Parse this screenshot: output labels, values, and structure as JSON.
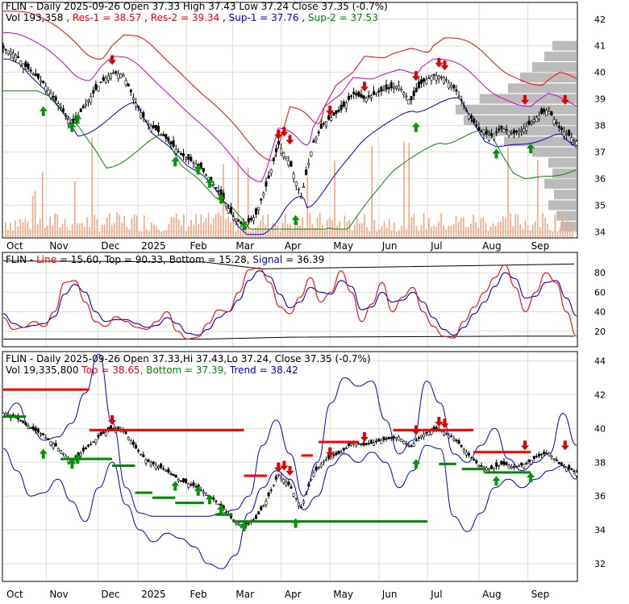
{
  "panel1": {
    "header1": "FLIN - Daily 2025-09-26 Open 37.33  High 37.43  Low 37.24  Close 37.35 (-0.7%)",
    "vol": "Vol 193,358",
    "res1": "Res-1 = 38.57",
    "res2": "Res-2 = 39.34",
    "sup1": "Sup-1 = 37.76",
    "sup2": "Sup-2 = 37.53",
    "yticks": [
      "42",
      "41",
      "40",
      "39",
      "38",
      "37",
      "36",
      "35",
      "34"
    ]
  },
  "panel2": {
    "prefix": "FLIN - ",
    "line_label": "Line",
    "line_value": " = 15.60, ",
    "top": "Top = 90.33, ",
    "bottom": "Bottom = 15.28, ",
    "signal_label": "Signal",
    "signal_value": " = 36.39",
    "yticks": [
      "80",
      "60",
      "40",
      "20"
    ]
  },
  "panel3": {
    "header1": "FLIN - Daily 2025-09-26 Open 37.33,Hi 37.43,Lo 37.24,  Close 37.35 (-0.7%)",
    "vol": "Vol 19,335,800 ",
    "top": "Top = 38.65, ",
    "bottom": "Bottom = 37.39, ",
    "trend": "Trend = 38.42",
    "yticks": [
      "44",
      "42",
      "40",
      "38",
      "36",
      "34",
      "32"
    ]
  },
  "xaxis": [
    "Oct",
    "Nov",
    "Dec",
    "2025",
    "Feb",
    "Mar",
    "Apr",
    "May",
    "Jun",
    "Jul",
    "Aug",
    "Sep"
  ],
  "colors": {
    "res": "#ff0000",
    "sup1": "#0000cc",
    "sup2": "#008800",
    "magenta": "#cc00cc",
    "line": "#ff0000",
    "signal": "#0000cc",
    "top_bar": "#ff0000",
    "bottom_bar": "#008800",
    "trend": "#0000cc"
  },
  "chart_data": [
    {
      "type": "candlestick",
      "ylim": [
        33.8,
        42.6
      ],
      "close_path_points": [
        [
          0,
          40.9
        ],
        [
          0.02,
          40.7
        ],
        [
          0.04,
          40.2
        ],
        [
          0.07,
          39.6
        ],
        [
          0.1,
          38.7
        ],
        [
          0.12,
          38.0
        ],
        [
          0.15,
          39.0
        ],
        [
          0.17,
          39.6
        ],
        [
          0.19,
          40.0
        ],
        [
          0.21,
          39.9
        ],
        [
          0.23,
          38.9
        ],
        [
          0.25,
          38.1
        ],
        [
          0.28,
          37.6
        ],
        [
          0.31,
          36.9
        ],
        [
          0.34,
          36.5
        ],
        [
          0.36,
          36.0
        ],
        [
          0.38,
          35.4
        ],
        [
          0.4,
          34.6
        ],
        [
          0.42,
          34.2
        ],
        [
          0.44,
          34.6
        ],
        [
          0.46,
          35.8
        ],
        [
          0.48,
          37.3
        ],
        [
          0.5,
          36.6
        ],
        [
          0.52,
          35.3
        ],
        [
          0.54,
          37.3
        ],
        [
          0.56,
          38.1
        ],
        [
          0.59,
          38.6
        ],
        [
          0.61,
          39.2
        ],
        [
          0.63,
          39.0
        ],
        [
          0.66,
          39.3
        ],
        [
          0.69,
          39.5
        ],
        [
          0.71,
          38.9
        ],
        [
          0.73,
          39.6
        ],
        [
          0.75,
          39.9
        ],
        [
          0.77,
          39.8
        ],
        [
          0.79,
          39.3
        ],
        [
          0.81,
          38.5
        ],
        [
          0.83,
          37.8
        ],
        [
          0.85,
          37.6
        ],
        [
          0.87,
          37.9
        ],
        [
          0.89,
          37.7
        ],
        [
          0.91,
          37.9
        ],
        [
          0.93,
          38.3
        ],
        [
          0.95,
          38.6
        ],
        [
          0.97,
          37.9
        ],
        [
          1.0,
          37.4
        ]
      ],
      "red_arrow_points": [
        [
          0.19,
          40.4
        ],
        [
          0.48,
          37.6
        ],
        [
          0.49,
          37.7
        ],
        [
          0.5,
          37.4
        ],
        [
          0.57,
          38.5
        ],
        [
          0.63,
          39.4
        ],
        [
          0.72,
          39.8
        ],
        [
          0.76,
          40.3
        ],
        [
          0.77,
          40.2
        ],
        [
          0.91,
          38.9
        ],
        [
          0.98,
          38.9
        ]
      ],
      "green_arrow_points": [
        [
          0.07,
          38.6
        ],
        [
          0.12,
          38.0
        ],
        [
          0.13,
          38.3
        ],
        [
          0.3,
          36.7
        ],
        [
          0.34,
          36.4
        ],
        [
          0.36,
          35.9
        ],
        [
          0.38,
          35.3
        ],
        [
          0.42,
          34.3
        ],
        [
          0.51,
          34.5
        ],
        [
          0.72,
          38.0
        ],
        [
          0.86,
          37.0
        ],
        [
          0.92,
          37.2
        ]
      ],
      "volume_profile": [
        [
          34.2,
          20
        ],
        [
          34.6,
          25
        ],
        [
          35.0,
          35
        ],
        [
          35.4,
          28
        ],
        [
          35.8,
          40
        ],
        [
          36.2,
          30
        ],
        [
          36.6,
          35
        ],
        [
          37.0,
          55
        ],
        [
          37.4,
          90
        ],
        [
          37.8,
          120
        ],
        [
          38.2,
          140
        ],
        [
          38.6,
          150
        ],
        [
          39.0,
          120
        ],
        [
          39.4,
          85
        ],
        [
          39.8,
          70
        ],
        [
          40.2,
          55
        ],
        [
          40.6,
          40
        ],
        [
          41.0,
          30
        ]
      ]
    },
    {
      "type": "line",
      "ylim": [
        5,
        100
      ],
      "series": [
        {
          "name": "Line",
          "values": [
            34,
            22,
            24,
            30,
            25,
            40,
            70,
            72,
            50,
            30,
            25,
            35,
            30,
            24,
            22,
            30,
            40,
            20,
            12,
            14,
            28,
            42,
            40,
            60,
            83,
            85,
            70,
            45,
            38,
            55,
            75,
            50,
            60,
            82,
            60,
            30,
            48,
            70,
            40,
            55,
            65,
            40,
            25,
            15,
            13,
            30,
            45,
            60,
            75,
            88,
            65,
            40,
            60,
            80,
            70,
            40,
            15
          ]
        },
        {
          "name": "Signal",
          "values": [
            38,
            28,
            24,
            26,
            28,
            35,
            58,
            68,
            60,
            40,
            30,
            32,
            32,
            28,
            24,
            26,
            34,
            28,
            18,
            16,
            22,
            34,
            40,
            52,
            72,
            82,
            76,
            58,
            44,
            50,
            65,
            60,
            58,
            72,
            66,
            42,
            45,
            60,
            50,
            52,
            60,
            50,
            34,
            22,
            16,
            24,
            38,
            50,
            66,
            80,
            74,
            54,
            56,
            70,
            72,
            54,
            36
          ]
        }
      ],
      "top": 90.33,
      "bottom": 15.28,
      "hline": 90.33
    },
    {
      "type": "candlestick",
      "ylim": [
        31.0,
        44.5
      ],
      "upper_band": [
        40.8,
        41.5,
        40.0,
        39.3,
        39.5,
        40.3,
        42.1,
        44.4,
        40.3,
        36.5,
        35.0,
        34.8,
        34.8,
        34.8,
        34.8,
        34.8,
        35.0,
        35.2,
        36.0,
        39.0,
        40.5,
        38.5,
        36.0,
        38.0,
        41.5,
        43.0,
        42.5,
        42.8,
        40.5,
        38.5,
        39.3,
        42.8,
        41.5,
        38.5,
        38.0,
        39.0,
        40.0,
        38.2,
        37.5,
        38.0,
        38.5,
        40.9,
        39.0
      ],
      "lower_band": [
        38.8,
        37.5,
        36.0,
        36.2,
        37.0,
        35.7,
        34.5,
        36.5,
        38.0,
        35.5,
        34.0,
        33.3,
        33.8,
        33.5,
        33.0,
        32.0,
        31.7,
        32.5,
        35.0,
        36.5,
        37.5,
        37.0,
        35.2,
        36.0,
        37.8,
        38.5,
        38.0,
        38.6,
        38.0,
        36.5,
        37.5,
        39.0,
        38.8,
        34.8,
        33.9,
        35.0,
        36.5,
        37.0,
        36.5,
        37.0,
        37.5,
        37.8,
        37.0
      ],
      "top_bars": [
        [
          0.0,
          0.15,
          42.3
        ],
        [
          0.15,
          0.42,
          39.9
        ],
        [
          0.42,
          0.46,
          37.2
        ],
        [
          0.52,
          0.54,
          38.4
        ],
        [
          0.55,
          0.62,
          39.2
        ],
        [
          0.68,
          0.82,
          39.9
        ],
        [
          0.82,
          0.87,
          38.6
        ],
        [
          0.87,
          0.92,
          38.6
        ]
      ],
      "bottom_bars": [
        [
          0.0,
          0.04,
          40.7
        ],
        [
          0.1,
          0.19,
          38.2
        ],
        [
          0.19,
          0.23,
          37.8
        ],
        [
          0.23,
          0.26,
          36.2
        ],
        [
          0.26,
          0.3,
          35.9
        ],
        [
          0.3,
          0.35,
          35.6
        ],
        [
          0.37,
          0.4,
          34.9
        ],
        [
          0.4,
          0.74,
          34.5
        ],
        [
          0.76,
          0.79,
          37.9
        ],
        [
          0.8,
          0.84,
          37.6
        ],
        [
          0.84,
          0.92,
          37.4
        ]
      ],
      "bottom": 37.39,
      "top": 38.65,
      "trend": 38.42
    }
  ]
}
